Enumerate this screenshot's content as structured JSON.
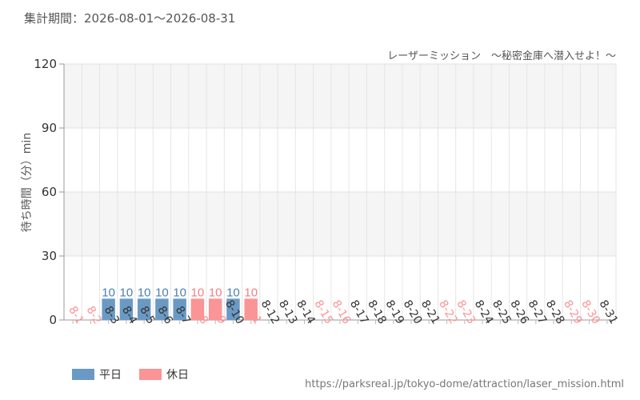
{
  "header": {
    "period": "集計期間：2026-08-01～2026-08-31"
  },
  "legend": [
    {
      "label": "平日",
      "color": "#6a9ac4"
    },
    {
      "label": "休日",
      "color": "#fb9496"
    }
  ],
  "source": "https://parksreal.jp/tokyo-dome/attraction/laser_mission.html",
  "chart_data": {
    "type": "bar",
    "title": "レーザーミッション　～秘密金庫へ潜入せよ！～",
    "ylabel": "待ち時間（分）min",
    "xlabel": "",
    "ylim": [
      0,
      120
    ],
    "yticks": [
      0,
      30,
      60,
      90,
      120
    ],
    "grid": true,
    "legend_position": "bottom-left",
    "colors": {
      "weekday": "#6a9ac4",
      "holiday": "#fb9496",
      "weekday_label": "#4a7fb0",
      "holiday_label": "#f07f82"
    },
    "categories": [
      "8-1",
      "8-2",
      "8-3",
      "8-4",
      "8-5",
      "8-6",
      "8-7",
      "8-8",
      "8-9",
      "8-10",
      "8-11",
      "8-12",
      "8-13",
      "8-14",
      "8-15",
      "8-16",
      "8-17",
      "8-18",
      "8-19",
      "8-20",
      "8-21",
      "8-22",
      "8-23",
      "8-24",
      "8-25",
      "8-26",
      "8-27",
      "8-28",
      "8-29",
      "8-30",
      "8-31"
    ],
    "holiday": [
      true,
      true,
      false,
      false,
      false,
      false,
      false,
      true,
      true,
      false,
      true,
      false,
      false,
      false,
      true,
      true,
      false,
      false,
      false,
      false,
      false,
      true,
      true,
      false,
      false,
      false,
      false,
      false,
      true,
      true,
      false
    ],
    "values": [
      null,
      null,
      10,
      10,
      10,
      10,
      10,
      10,
      10,
      10,
      10,
      null,
      null,
      null,
      null,
      null,
      null,
      null,
      null,
      null,
      null,
      null,
      null,
      null,
      null,
      null,
      null,
      null,
      null,
      null,
      null
    ]
  }
}
